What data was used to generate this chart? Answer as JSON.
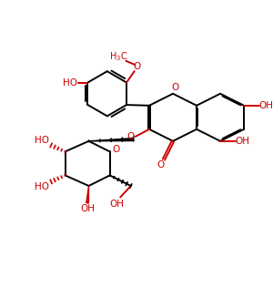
{
  "background": "#ffffff",
  "bond_color": "#000000",
  "red_color": "#cc0000",
  "figsize": [
    3.0,
    3.27
  ],
  "dpi": 100,
  "lw": 1.4,
  "xlim": [
    0,
    10
  ],
  "ylim": [
    0,
    10.9
  ]
}
